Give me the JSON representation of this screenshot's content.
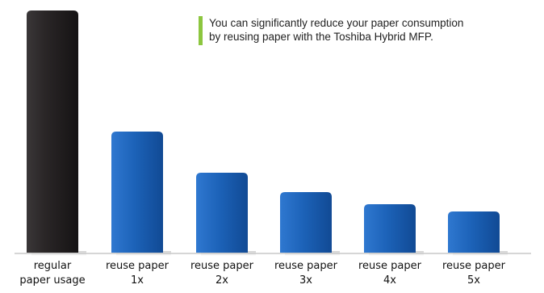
{
  "note": {
    "lines": [
      "You can significantly reduce your paper consumption",
      "by reusing paper with the Toshiba Hybrid MFP."
    ],
    "accent_color": "#8cc63f"
  },
  "colors": {
    "regular_bar": "#231f20",
    "reuse_bar": "#1a5fb4",
    "axis": "#c8c8c8"
  },
  "chart_data": {
    "type": "bar",
    "title": "",
    "xlabel": "",
    "ylabel": "",
    "ylim": [
      0,
      100
    ],
    "grid": false,
    "legend": "none",
    "categories": [
      [
        "regular",
        "paper usage"
      ],
      [
        "reuse paper",
        "1x"
      ],
      [
        "reuse paper",
        "2x"
      ],
      [
        "reuse paper",
        "3x"
      ],
      [
        "reuse paper",
        "4x"
      ],
      [
        "reuse paper",
        "5x"
      ]
    ],
    "values": [
      100,
      50,
      33,
      25,
      20,
      17
    ]
  }
}
